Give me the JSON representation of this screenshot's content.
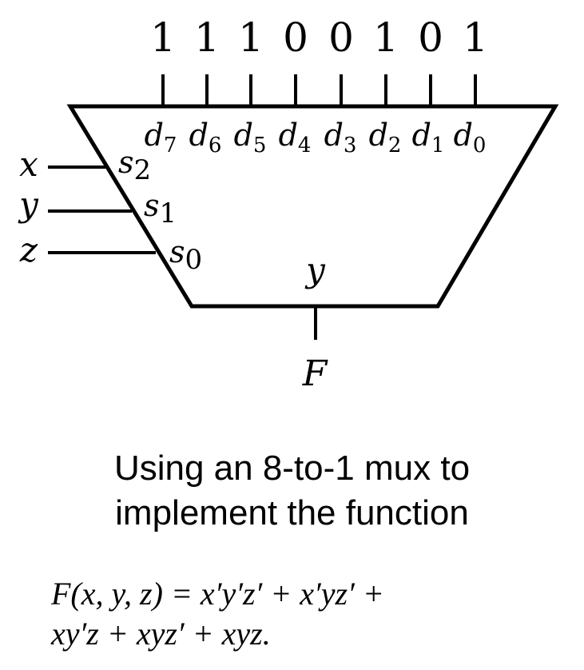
{
  "mux": {
    "data_values": [
      "1",
      "1",
      "1",
      "0",
      "0",
      "1",
      "0",
      "1"
    ],
    "data_inputs": [
      {
        "base": "d",
        "sub": "7"
      },
      {
        "base": "d",
        "sub": "6"
      },
      {
        "base": "d",
        "sub": "5"
      },
      {
        "base": "d",
        "sub": "4"
      },
      {
        "base": "d",
        "sub": "3"
      },
      {
        "base": "d",
        "sub": "2"
      },
      {
        "base": "d",
        "sub": "1"
      },
      {
        "base": "d",
        "sub": "0"
      }
    ],
    "select_pins": [
      {
        "base": "s",
        "sub": "2"
      },
      {
        "base": "s",
        "sub": "1"
      },
      {
        "base": "s",
        "sub": "0"
      }
    ],
    "select_vars": [
      "x",
      "y",
      "z"
    ],
    "output_pin": "y",
    "output_label": "F"
  },
  "caption": {
    "line1": "Using an 8-to-1 mux to",
    "line2": "implement the function"
  },
  "formula": {
    "line1": "F(x, y, z) = x′y′z′ + x′yz′ +",
    "line2": "xy′z + xyz′ + xyz."
  }
}
